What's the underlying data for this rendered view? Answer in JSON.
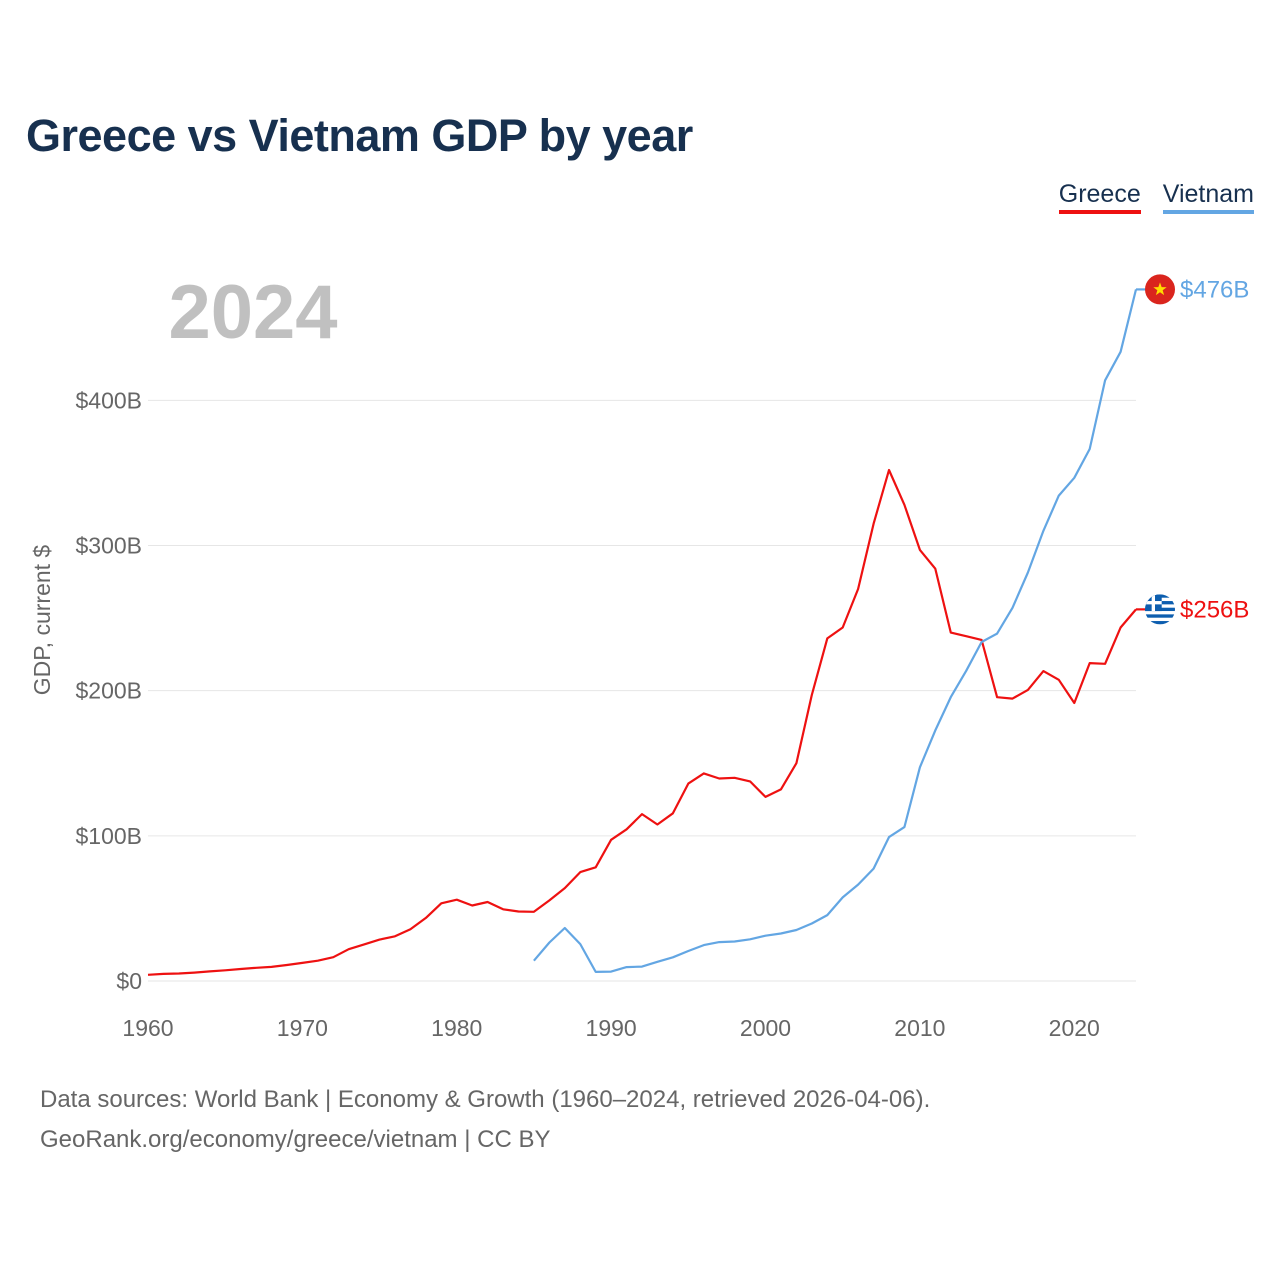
{
  "colors": {
    "greece": "#ee1111",
    "vietnam": "#63a6e3",
    "title": "#17304f",
    "grid": "#e6e6e6",
    "axis_text": "#666666",
    "year_watermark": "#c0c0c0"
  },
  "chart_data": {
    "type": "line",
    "title": "Greece vs Vietnam GDP by year",
    "xlabel": "",
    "ylabel": "GDP, current $",
    "xlim": [
      1960,
      2024
    ],
    "ylim": [
      0,
      476
    ],
    "x_ticks": [
      1960,
      1970,
      1980,
      1990,
      2000,
      2010,
      2020
    ],
    "y_ticks": [
      0,
      100,
      200,
      300,
      400
    ],
    "y_tick_labels": [
      "$0",
      "$100B",
      "$200B",
      "$300B",
      "$400B"
    ],
    "highlight_year": "2024",
    "legend_position": "top-right",
    "series": [
      {
        "name": "Greece",
        "color": "#ee1111",
        "end_label": "$256B",
        "flag_icon": "greece-flag-icon",
        "points": [
          [
            1960,
            4.3
          ],
          [
            1961,
            4.9
          ],
          [
            1962,
            5.2
          ],
          [
            1963,
            5.8
          ],
          [
            1964,
            6.6
          ],
          [
            1965,
            7.4
          ],
          [
            1966,
            8.3
          ],
          [
            1967,
            9.1
          ],
          [
            1968,
            9.7
          ],
          [
            1969,
            11.0
          ],
          [
            1970,
            12.5
          ],
          [
            1971,
            14.0
          ],
          [
            1972,
            16.4
          ],
          [
            1973,
            21.9
          ],
          [
            1974,
            25.2
          ],
          [
            1975,
            28.5
          ],
          [
            1976,
            30.8
          ],
          [
            1977,
            35.6
          ],
          [
            1978,
            43.5
          ],
          [
            1979,
            53.5
          ],
          [
            1980,
            56.0
          ],
          [
            1981,
            52.0
          ],
          [
            1982,
            54.4
          ],
          [
            1983,
            49.4
          ],
          [
            1984,
            47.9
          ],
          [
            1985,
            47.7
          ],
          [
            1986,
            55.5
          ],
          [
            1987,
            64.0
          ],
          [
            1988,
            75.0
          ],
          [
            1989,
            78.3
          ],
          [
            1990,
            97.3
          ],
          [
            1991,
            104.5
          ],
          [
            1992,
            115.0
          ],
          [
            1993,
            107.8
          ],
          [
            1994,
            115.5
          ],
          [
            1995,
            136.0
          ],
          [
            1996,
            143.0
          ],
          [
            1997,
            139.5
          ],
          [
            1998,
            140.0
          ],
          [
            1999,
            137.5
          ],
          [
            2000,
            126.8
          ],
          [
            2001,
            132.0
          ],
          [
            2002,
            150.0
          ],
          [
            2003,
            197.0
          ],
          [
            2004,
            236.0
          ],
          [
            2005,
            243.5
          ],
          [
            2006,
            270.0
          ],
          [
            2007,
            315.0
          ],
          [
            2008,
            352.0
          ],
          [
            2009,
            328.0
          ],
          [
            2010,
            297.0
          ],
          [
            2011,
            284.0
          ],
          [
            2012,
            240.0
          ],
          [
            2013,
            237.5
          ],
          [
            2014,
            235.0
          ],
          [
            2015,
            195.5
          ],
          [
            2016,
            194.5
          ],
          [
            2017,
            200.5
          ],
          [
            2018,
            213.5
          ],
          [
            2019,
            207.5
          ],
          [
            2020,
            191.5
          ],
          [
            2021,
            219.0
          ],
          [
            2022,
            218.5
          ],
          [
            2023,
            243.5
          ],
          [
            2024,
            256.0
          ]
        ]
      },
      {
        "name": "Vietnam",
        "color": "#63a6e3",
        "end_label": "$476B",
        "flag_icon": "vietnam-flag-icon",
        "points": [
          [
            1985,
            14.0
          ],
          [
            1986,
            26.5
          ],
          [
            1987,
            36.5
          ],
          [
            1988,
            25.4
          ],
          [
            1989,
            6.3
          ],
          [
            1990,
            6.5
          ],
          [
            1991,
            9.6
          ],
          [
            1992,
            9.9
          ],
          [
            1993,
            13.2
          ],
          [
            1994,
            16.3
          ],
          [
            1995,
            20.7
          ],
          [
            1996,
            24.7
          ],
          [
            1997,
            26.8
          ],
          [
            1998,
            27.2
          ],
          [
            1999,
            28.7
          ],
          [
            2000,
            31.2
          ],
          [
            2001,
            32.7
          ],
          [
            2002,
            35.1
          ],
          [
            2003,
            39.6
          ],
          [
            2004,
            45.4
          ],
          [
            2005,
            57.6
          ],
          [
            2006,
            66.4
          ],
          [
            2007,
            77.4
          ],
          [
            2008,
            99.1
          ],
          [
            2009,
            106.0
          ],
          [
            2010,
            147.2
          ],
          [
            2011,
            172.6
          ],
          [
            2012,
            195.6
          ],
          [
            2013,
            213.7
          ],
          [
            2014,
            233.5
          ],
          [
            2015,
            239.3
          ],
          [
            2016,
            257.1
          ],
          [
            2017,
            281.4
          ],
          [
            2018,
            310.1
          ],
          [
            2019,
            334.4
          ],
          [
            2020,
            346.6
          ],
          [
            2021,
            366.5
          ],
          [
            2022,
            413.8
          ],
          [
            2023,
            433.4
          ],
          [
            2024,
            476.4
          ]
        ]
      }
    ]
  },
  "footer": {
    "line1": "Data sources: World Bank | Economy & Growth (1960–2024, retrieved 2026-04-06).",
    "line2": "GeoRank.org/economy/greece/vietnam | CC BY"
  }
}
